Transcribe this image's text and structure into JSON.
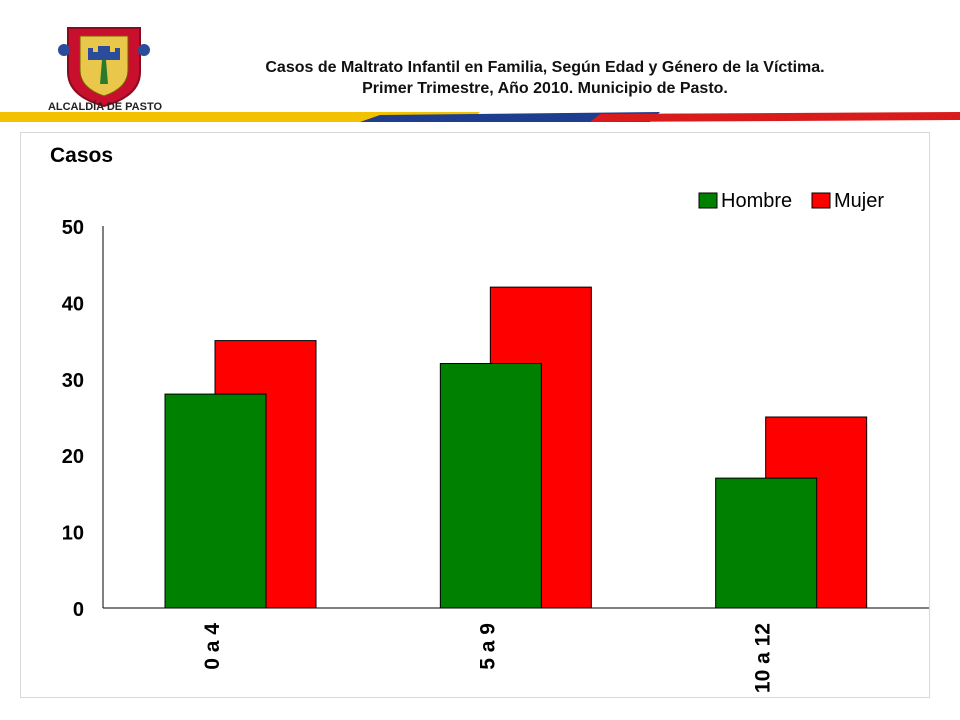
{
  "header": {
    "logo_text": "ALCALDÍA DE PASTO",
    "title_line1": "Casos de Maltrato Infantil en Familia, Según Edad y Género de la Víctima.",
    "title_line2": "Primer Trimestre, Año 2010. Municipio de Pasto."
  },
  "colors": {
    "hombre": "#008000",
    "mujer": "#ff0000",
    "stripe_yellow": "#f2c200",
    "stripe_blue": "#1f3d8f",
    "stripe_red": "#d81b1b"
  },
  "chart_data": {
    "type": "bar",
    "title": "",
    "xlabel": "",
    "ylabel": "Casos",
    "ylim": [
      0,
      50
    ],
    "yticks": [
      0,
      10,
      20,
      30,
      40,
      50
    ],
    "categories": [
      "0 a 4",
      "5 a 9",
      "10 a 12"
    ],
    "series": [
      {
        "name": "Hombre",
        "values": [
          28,
          32,
          17
        ]
      },
      {
        "name": "Mujer",
        "values": [
          35,
          42,
          25
        ]
      }
    ],
    "grid": false,
    "legend": "top-right"
  }
}
